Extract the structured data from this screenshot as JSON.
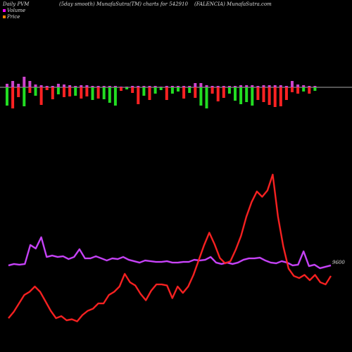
{
  "header": {
    "left": "Daily PVM",
    "center": "(5day smooth) MunafaSutra(TM) charts for 542910",
    "right": "(FALENCIA) MunafaSutra.com"
  },
  "legend": [
    {
      "label": "Volume",
      "color": "#ff00ff"
    },
    {
      "label": "Price",
      "color": "#ff8000"
    }
  ],
  "chart_data": {
    "type": "bar",
    "title": "",
    "volume_bars": {
      "baseline_color": "#aaaaaa",
      "up_color": "#22dd22",
      "down_color": "#ff2222",
      "top_color": "#cc44cc",
      "values": [
        {
          "up": 5,
          "down": 26,
          "c": "g"
        },
        {
          "up": 9,
          "down": 30,
          "c": "r"
        },
        {
          "up": 5,
          "down": 14,
          "c": "r"
        },
        {
          "up": 15,
          "down": 27,
          "c": "g"
        },
        {
          "up": 9,
          "down": 8,
          "c": "r"
        },
        {
          "up": 4,
          "down": 12,
          "c": "g"
        },
        {
          "up": 3,
          "down": 25,
          "c": "r"
        },
        {
          "up": 2,
          "down": 4,
          "c": "r"
        },
        {
          "up": 2,
          "down": 17,
          "c": "r"
        },
        {
          "up": 5,
          "down": 10,
          "c": "g"
        },
        {
          "up": 4,
          "down": 14,
          "c": "r"
        },
        {
          "up": 3,
          "down": 13,
          "c": "r"
        },
        {
          "up": 2,
          "down": 12,
          "c": "g"
        },
        {
          "up": 3,
          "down": 16,
          "c": "r"
        },
        {
          "up": 3,
          "down": 13,
          "c": "r"
        },
        {
          "up": 2,
          "down": 18,
          "c": "g"
        },
        {
          "up": 2,
          "down": 16,
          "c": "r"
        },
        {
          "up": 2,
          "down": 17,
          "c": "g"
        },
        {
          "up": 2,
          "down": 22,
          "c": "g"
        },
        {
          "up": 2,
          "down": 26,
          "c": "g"
        },
        {
          "up": 1,
          "down": 5,
          "c": "r"
        },
        {
          "up": 1,
          "down": 3,
          "c": "g"
        },
        {
          "up": 2,
          "down": 8,
          "c": "r"
        },
        {
          "up": 2,
          "down": 24,
          "c": "r"
        },
        {
          "up": 2,
          "down": 12,
          "c": "g"
        },
        {
          "up": 2,
          "down": 18,
          "c": "r"
        },
        {
          "up": 2,
          "down": 9,
          "c": "g"
        },
        {
          "up": 1,
          "down": 4,
          "c": "g"
        },
        {
          "up": 2,
          "down": 18,
          "c": "r"
        },
        {
          "up": 2,
          "down": 9,
          "c": "g"
        },
        {
          "up": 2,
          "down": 6,
          "c": "g"
        },
        {
          "up": 2,
          "down": 16,
          "c": "r"
        },
        {
          "up": 2,
          "down": 8,
          "c": "g"
        },
        {
          "up": 6,
          "down": 15,
          "c": "r"
        },
        {
          "up": 6,
          "down": 26,
          "c": "g"
        },
        {
          "up": 3,
          "down": 30,
          "c": "g"
        },
        {
          "up": 2,
          "down": 9,
          "c": "r"
        },
        {
          "up": 2,
          "down": 20,
          "c": "r"
        },
        {
          "up": 2,
          "down": 15,
          "c": "r"
        },
        {
          "up": 2,
          "down": 9,
          "c": "g"
        },
        {
          "up": 2,
          "down": 19,
          "c": "g"
        },
        {
          "up": 3,
          "down": 24,
          "c": "g"
        },
        {
          "up": 3,
          "down": 21,
          "c": "g"
        },
        {
          "up": 3,
          "down": 26,
          "c": "g"
        },
        {
          "up": 2,
          "down": 18,
          "c": "r"
        },
        {
          "up": 3,
          "down": 21,
          "c": "r"
        },
        {
          "up": 3,
          "down": 25,
          "c": "r"
        },
        {
          "up": 3,
          "down": 28,
          "c": "r"
        },
        {
          "up": 3,
          "down": 27,
          "c": "r"
        },
        {
          "up": 2,
          "down": 18,
          "c": "r"
        },
        {
          "up": 9,
          "down": 7,
          "c": "r"
        },
        {
          "up": 4,
          "down": 9,
          "c": "r"
        },
        {
          "up": 3,
          "down": 6,
          "c": "g"
        },
        {
          "up": 2,
          "down": 9,
          "c": "r"
        },
        {
          "up": 2,
          "down": 5,
          "c": "g"
        }
      ]
    },
    "series": [
      {
        "color": "#ff2222",
        "values": [
          6,
          12,
          20,
          28,
          31,
          36,
          31,
          22,
          13,
          6,
          8,
          4,
          5,
          3,
          9,
          13,
          15,
          20,
          20,
          28,
          31,
          36,
          48,
          40,
          37,
          29,
          23,
          32,
          38,
          38,
          37,
          25,
          36,
          30,
          36,
          47,
          61,
          75,
          87,
          76,
          63,
          58,
          60,
          71,
          84,
          102,
          116,
          126,
          121,
          127,
          142,
          102,
          74,
          53,
          46,
          44,
          47,
          42,
          47,
          40,
          38,
          46
        ]
      },
      {
        "color": "#cc44ff",
        "values": [
          48,
          50,
          49,
          50,
          77,
          72,
          88,
          60,
          62,
          60,
          61,
          57,
          60,
          71,
          58,
          58,
          61,
          58,
          55,
          58,
          57,
          60,
          56,
          54,
          52,
          55,
          54,
          53,
          53,
          54,
          52,
          52,
          53,
          53,
          56,
          55,
          56,
          60,
          52,
          50,
          52,
          50,
          52,
          56,
          58,
          58,
          59,
          55,
          52,
          51,
          54,
          52,
          48,
          49,
          68,
          47,
          49,
          44,
          46,
          48
        ]
      }
    ],
    "annotation": "9600"
  }
}
